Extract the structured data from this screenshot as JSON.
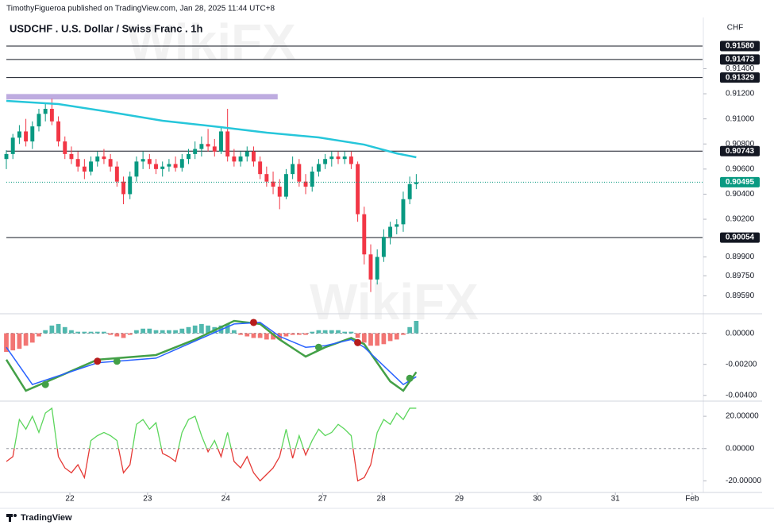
{
  "header": {
    "publisher": "TimothyFigueroa published on TradingView.com, Jan 28, 2025 11:44 UTC+8",
    "title": "USDCHF . U.S. Dollar / Swiss Franc . 1h",
    "watermark": "WikiFX"
  },
  "footer": {
    "brand": "TradingView"
  },
  "chart_data": [
    {
      "type": "candlestick",
      "currency": "CHF",
      "xlim": [
        0,
        107
      ],
      "ylim": [
        0.89447,
        0.91808
      ],
      "up_color": "#089981",
      "down_color": "#f23645",
      "yticks": [
        {
          "value": 0.914,
          "label": "0.91400"
        },
        {
          "value": 0.912,
          "label": "0.91200"
        },
        {
          "value": 0.91,
          "label": "0.91000"
        },
        {
          "value": 0.908,
          "label": "0.90800"
        },
        {
          "value": 0.906,
          "label": "0.90600"
        },
        {
          "value": 0.904,
          "label": "0.90400"
        },
        {
          "value": 0.902,
          "label": "0.90200"
        },
        {
          "value": 0.899,
          "label": "0.89900"
        },
        {
          "value": 0.8975,
          "label": "0.89750"
        },
        {
          "value": 0.8959,
          "label": "0.89590"
        }
      ],
      "open": [
        0.9068,
        0.9072,
        0.9085,
        0.909,
        0.9082,
        0.9094,
        0.9104,
        0.9108,
        0.9098,
        0.9082,
        0.9072,
        0.9068,
        0.9062,
        0.9058,
        0.9066,
        0.907,
        0.9068,
        0.9062,
        0.905,
        0.904,
        0.9054,
        0.9066,
        0.9068,
        0.9064,
        0.906,
        0.9062,
        0.9064,
        0.9061,
        0.9068,
        0.9072,
        0.9076,
        0.908,
        0.9078,
        0.9074,
        0.909,
        0.907,
        0.9066,
        0.907,
        0.9074,
        0.9066,
        0.9056,
        0.905,
        0.9046,
        0.9038,
        0.9056,
        0.9064,
        0.905,
        0.9046,
        0.9058,
        0.9064,
        0.9068,
        0.907,
        0.9068,
        0.907,
        0.9064,
        0.9024,
        0.8992,
        0.8972,
        0.899,
        0.9006,
        0.9014,
        0.9016,
        0.9036,
        0.9048
      ],
      "high": [
        0.9075,
        0.9088,
        0.9095,
        0.91,
        0.9098,
        0.9108,
        0.9112,
        0.9116,
        0.9102,
        0.9086,
        0.9078,
        0.9074,
        0.9068,
        0.907,
        0.9074,
        0.9076,
        0.9072,
        0.9066,
        0.9054,
        0.9058,
        0.907,
        0.9074,
        0.9072,
        0.9068,
        0.9066,
        0.9068,
        0.907,
        0.9072,
        0.9076,
        0.9082,
        0.9086,
        0.9092,
        0.9084,
        0.9094,
        0.9108,
        0.9076,
        0.9074,
        0.9078,
        0.9078,
        0.907,
        0.9062,
        0.9058,
        0.9052,
        0.906,
        0.907,
        0.9068,
        0.9056,
        0.9062,
        0.9068,
        0.9072,
        0.9074,
        0.9074,
        0.9074,
        0.9074,
        0.9066,
        0.903,
        0.9,
        0.8996,
        0.9012,
        0.9018,
        0.902,
        0.9042,
        0.9054,
        0.9056
      ],
      "low": [
        0.906,
        0.9068,
        0.908,
        0.9078,
        0.9076,
        0.909,
        0.9098,
        0.9095,
        0.9078,
        0.9068,
        0.9064,
        0.9058,
        0.9052,
        0.9055,
        0.9062,
        0.9064,
        0.9058,
        0.9046,
        0.9032,
        0.9036,
        0.905,
        0.906,
        0.906,
        0.9056,
        0.9054,
        0.9058,
        0.9058,
        0.9058,
        0.9064,
        0.9068,
        0.907,
        0.9074,
        0.907,
        0.9072,
        0.9066,
        0.9062,
        0.9062,
        0.9066,
        0.9062,
        0.9052,
        0.9046,
        0.904,
        0.9028,
        0.9036,
        0.9052,
        0.9046,
        0.904,
        0.9042,
        0.9054,
        0.906,
        0.9062,
        0.9064,
        0.9064,
        0.906,
        0.9018,
        0.8984,
        0.8962,
        0.8968,
        0.8986,
        0.9,
        0.9008,
        0.901,
        0.9032,
        0.9044
      ],
      "close": [
        0.9072,
        0.9085,
        0.909,
        0.9082,
        0.9094,
        0.9104,
        0.9108,
        0.9098,
        0.9082,
        0.9072,
        0.9068,
        0.9062,
        0.9058,
        0.9066,
        0.907,
        0.9068,
        0.9062,
        0.905,
        0.904,
        0.9054,
        0.9066,
        0.9068,
        0.9064,
        0.906,
        0.9062,
        0.9064,
        0.9061,
        0.9068,
        0.9072,
        0.9076,
        0.908,
        0.9078,
        0.9074,
        0.909,
        0.907,
        0.9066,
        0.907,
        0.9074,
        0.9066,
        0.9056,
        0.905,
        0.9046,
        0.9038,
        0.9056,
        0.9064,
        0.905,
        0.9046,
        0.9058,
        0.9064,
        0.9068,
        0.907,
        0.9068,
        0.907,
        0.9064,
        0.9024,
        0.8992,
        0.8972,
        0.899,
        0.9006,
        0.9014,
        0.9016,
        0.9036,
        0.9048,
        0.90495
      ],
      "ma": {
        "color": "#26c6da",
        "x": [
          0,
          8,
          16,
          24,
          33,
          40,
          48,
          55,
          60,
          63
        ],
        "values": [
          0.91143,
          0.91118,
          0.91054,
          0.90985,
          0.90934,
          0.9089,
          0.90852,
          0.90795,
          0.90725,
          0.90694
        ]
      },
      "zone": {
        "color": "#b39ddb",
        "x0": 0,
        "x1": 41.7,
        "y0": 0.91155,
        "y1": 0.91198
      },
      "hlines": [
        {
          "value": 0.9158,
          "label": "0.91580"
        },
        {
          "value": 0.91473,
          "label": "0.91473"
        },
        {
          "value": 0.91329,
          "label": "0.91329"
        },
        {
          "value": 0.90743,
          "label": "0.90743"
        },
        {
          "value": 0.90054,
          "label": "0.90054"
        }
      ],
      "last_price": {
        "value": 0.90495,
        "color": "#089981"
      }
    },
    {
      "type": "macd",
      "xlim": [
        0,
        107
      ],
      "ylim": [
        -0.00437,
        0.00126
      ],
      "zero_line": true,
      "yticks": [
        {
          "value": 0,
          "label": "0.00000"
        },
        {
          "value": -0.002,
          "label": "-0.00200"
        },
        {
          "value": -0.004,
          "label": "-0.00400"
        }
      ],
      "histogram": {
        "pos_color": "#26a69a",
        "neg_color": "#ef5350",
        "values": [
          -0.0012,
          -0.0011,
          -0.001,
          -0.0008,
          -0.0006,
          -0.0002,
          0.0002,
          0.0005,
          0.0006,
          0.0004,
          0.0002,
          0.0001,
          0.0001,
          0.0001,
          0.0001,
          0.0001,
          -0.0001,
          -0.0002,
          -0.0003,
          -0.0001,
          0.0002,
          0.0003,
          0.0003,
          0.0002,
          0.0002,
          0.0002,
          0.0002,
          0.0003,
          0.0004,
          0.0005,
          0.0006,
          0.0005,
          0.0004,
          0.0005,
          0.0006,
          0.0002,
          -0.0001,
          -0.0002,
          -0.0003,
          -0.0003,
          -0.0004,
          -0.0004,
          -0.0004,
          -0.0002,
          -0.0001,
          -0.0001,
          -0.0001,
          0.0001,
          0.0002,
          0.0002,
          0.0002,
          0.0002,
          0.0001,
          0.0001,
          -0.0003,
          -0.0006,
          -0.0008,
          -0.0008,
          -0.0007,
          -0.0005,
          -0.0004,
          -0.0001,
          0.0004,
          0.0008
        ]
      },
      "series": [
        {
          "color": "#43a047",
          "x": [
            0,
            3,
            14,
            23,
            29,
            35,
            39,
            42,
            46,
            49,
            53,
            55,
            59,
            61,
            63
          ],
          "values": [
            -0.0017,
            -0.0037,
            -0.0017,
            -0.0014,
            -0.0004,
            0.0008,
            0.0006,
            -0.0004,
            -0.0015,
            -0.0009,
            -0.0003,
            -0.0007,
            -0.0031,
            -0.0037,
            -0.0025
          ]
        },
        {
          "color": "#2962ff",
          "x": [
            0,
            4,
            14,
            23,
            29,
            35,
            39,
            42,
            46,
            49,
            53,
            55,
            59,
            61,
            63
          ],
          "values": [
            -0.0009,
            -0.0033,
            -0.0019,
            -0.0016,
            -0.0005,
            0.0006,
            0.0007,
            -0.0002,
            -0.0009,
            -0.0008,
            -0.0004,
            -0.0009,
            -0.0025,
            -0.0033,
            -0.0028
          ]
        }
      ],
      "cross_points": {
        "x": [
          6,
          14,
          17,
          38,
          48,
          54,
          62
        ],
        "values": [
          -0.0033,
          -0.0018,
          -0.0018,
          0.0007,
          -0.0009,
          -0.0006,
          -0.0029
        ],
        "colors": [
          "#43a047",
          "#b71c1c",
          "#43a047",
          "#b71c1c",
          "#43a047",
          "#b71c1c",
          "#43a047"
        ]
      }
    },
    {
      "type": "oscillator",
      "xlim": [
        0,
        107
      ],
      "ylim": [
        -27.2,
        29.4
      ],
      "zero_line": true,
      "up_color": "#5cd65c",
      "down_color": "#e53935",
      "yticks": [
        {
          "value": 20,
          "label": "20.00000"
        },
        {
          "value": 0,
          "label": "0.00000"
        },
        {
          "value": -20,
          "label": "-20.00000"
        }
      ],
      "xticks": [
        {
          "value": 9.76,
          "label": "22"
        },
        {
          "value": 21.7,
          "label": "23"
        },
        {
          "value": 33.7,
          "label": "24"
        },
        {
          "value": 48.6,
          "label": "27"
        },
        {
          "value": 57.6,
          "label": "28"
        },
        {
          "value": 69.6,
          "label": "29"
        },
        {
          "value": 81.6,
          "label": "30"
        },
        {
          "value": 93.6,
          "label": "31"
        },
        {
          "value": 105.4,
          "label": "Feb"
        }
      ],
      "values": [
        -8,
        -5,
        18,
        12,
        20,
        10,
        22,
        25,
        -5,
        -12,
        -15,
        -10,
        -18,
        5,
        8,
        10,
        8,
        5,
        -15,
        -10,
        15,
        18,
        12,
        16,
        -3,
        -5,
        -8,
        10,
        18,
        20,
        8,
        -2,
        5,
        -5,
        10,
        -8,
        -12,
        -5,
        -15,
        -20,
        -16,
        -12,
        -5,
        12,
        -6,
        8,
        -4,
        5,
        12,
        8,
        10,
        15,
        12,
        8,
        -20,
        -18,
        -10,
        10,
        18,
        15,
        22,
        18,
        25,
        25
      ]
    }
  ]
}
